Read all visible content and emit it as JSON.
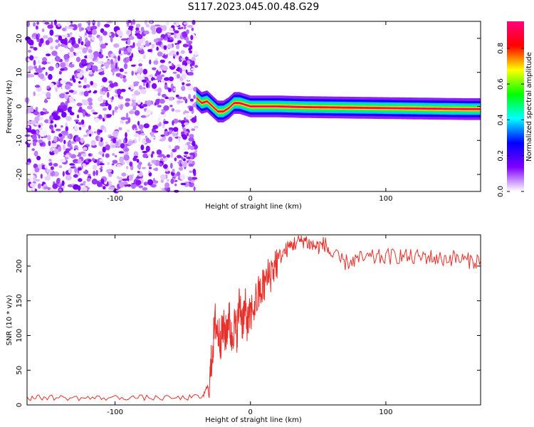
{
  "title": "S117.2023.045.00.48.G29",
  "chart_data": [
    {
      "type": "heatmap",
      "xlabel": "Height of straight line (km)",
      "ylabel": "Frequency (Hz)",
      "xlim": [
        -165,
        170
      ],
      "ylim": [
        -25,
        25
      ],
      "xticks": [
        -100,
        0,
        100
      ],
      "yticks": [
        -20,
        -10,
        0,
        10,
        20
      ],
      "grid": false,
      "colorbar": {
        "label": "Normalized spectral amplitude",
        "range": [
          0,
          0.95
        ],
        "ticks": [
          0.0,
          0.2,
          0.4,
          0.6,
          0.8
        ],
        "colormap": [
          "#ffffff",
          "#8000ff",
          "#0000ff",
          "#00ffff",
          "#00ff00",
          "#ffff00",
          "#ff0000",
          "#ff0080"
        ]
      },
      "noise_region_x": [
        -165,
        -40
      ],
      "ridge": {
        "x": [
          -40,
          -36,
          -32,
          -28,
          -24,
          -20,
          -16,
          -12,
          -8,
          -4,
          0,
          10,
          20,
          40,
          60,
          80,
          100,
          120,
          140,
          160,
          170
        ],
        "y": [
          2.5,
          1.0,
          1.5,
          0,
          -1.5,
          -1.5,
          -0.5,
          1.0,
          1.0,
          0.5,
          0,
          0,
          0,
          -0.2,
          -0.3,
          -0.4,
          -0.5,
          -0.6,
          -0.7,
          -0.8,
          -0.8
        ],
        "peak_amplitude": 0.9
      }
    },
    {
      "type": "line",
      "xlabel": "Height of straight line (km)",
      "ylabel": "SNR (10 * v/v)",
      "xlim": [
        -165,
        170
      ],
      "ylim": [
        0,
        245
      ],
      "xticks": [
        -100,
        0,
        100
      ],
      "yticks": [
        0,
        50,
        100,
        150,
        200
      ],
      "grid": false,
      "series": [
        {
          "color": "#e8302a",
          "x": [
            -165,
            -150,
            -130,
            -110,
            -90,
            -70,
            -50,
            -35,
            -30,
            -28,
            -26,
            -24,
            -22,
            -20,
            -18,
            -16,
            -14,
            -12,
            -10,
            -8,
            -6,
            -4,
            -2,
            0,
            4,
            8,
            12,
            16,
            20,
            25,
            30,
            35,
            40,
            45,
            50,
            55,
            60,
            70,
            80,
            90,
            100,
            110,
            120,
            130,
            140,
            150,
            160,
            170
          ],
          "y": [
            10,
            11,
            10,
            10,
            11,
            10,
            10,
            12,
            35,
            80,
            120,
            105,
            95,
            110,
            100,
            130,
            95,
            115,
            105,
            150,
            120,
            140,
            115,
            130,
            150,
            165,
            180,
            195,
            210,
            220,
            230,
            235,
            238,
            230,
            228,
            232,
            215,
            205,
            210,
            212,
            213,
            215,
            212,
            214,
            210,
            212,
            208,
            207
          ]
        }
      ]
    }
  ]
}
